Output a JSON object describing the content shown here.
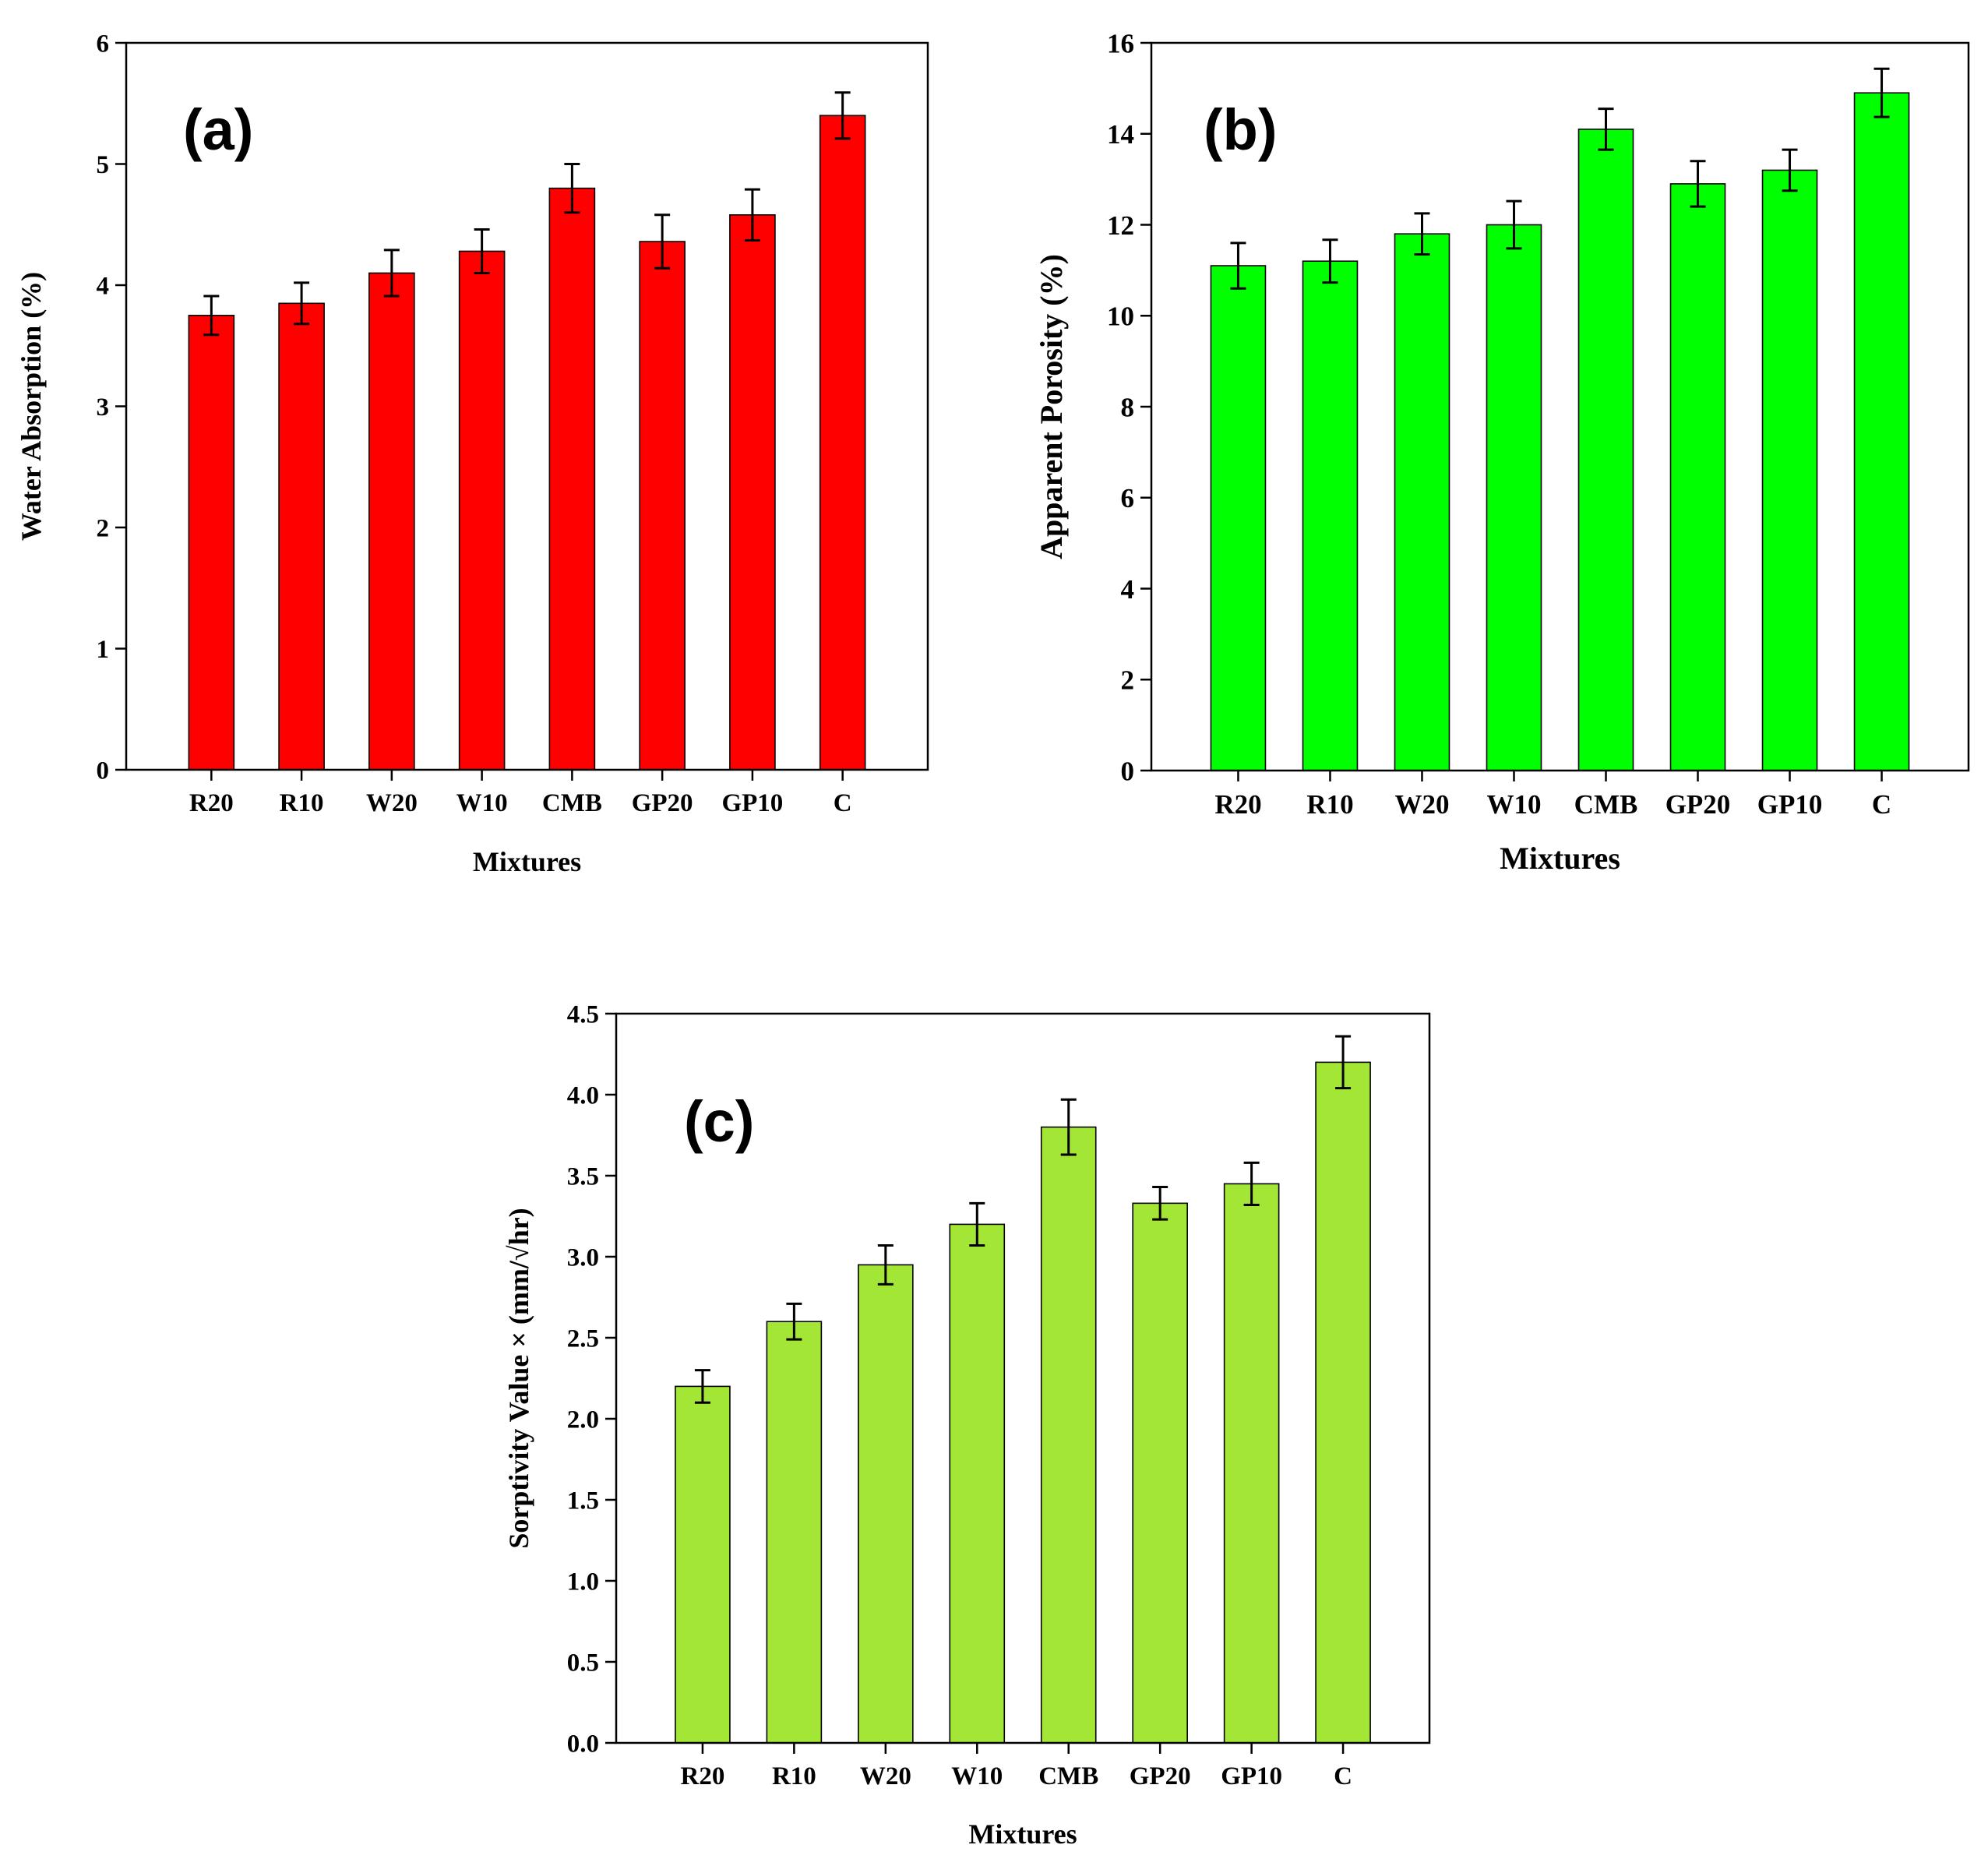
{
  "chart_data": [
    {
      "panel": "(a)",
      "type": "bar",
      "categories": [
        "R20",
        "R10",
        "W20",
        "W10",
        "CMB",
        "GP20",
        "GP10",
        "C"
      ],
      "values": [
        3.75,
        3.85,
        4.1,
        4.28,
        4.8,
        4.36,
        4.58,
        5.4
      ],
      "errors": [
        0.16,
        0.17,
        0.19,
        0.18,
        0.2,
        0.22,
        0.21,
        0.19
      ],
      "xlabel": "Mixtures",
      "ylabel": "Water Absorption (%)",
      "ylim": [
        0,
        6
      ],
      "yticks": [
        "0",
        "1",
        "2",
        "3",
        "4",
        "5",
        "6"
      ],
      "bar_color": "#ff0000",
      "grid": false,
      "legend": "none"
    },
    {
      "panel": "(b)",
      "type": "bar",
      "categories": [
        "R20",
        "R10",
        "W20",
        "W10",
        "CMB",
        "GP20",
        "GP10",
        "C"
      ],
      "values": [
        11.1,
        11.2,
        11.8,
        12.0,
        14.1,
        12.9,
        13.2,
        14.9
      ],
      "errors": [
        0.5,
        0.47,
        0.45,
        0.52,
        0.45,
        0.5,
        0.45,
        0.53
      ],
      "xlabel": "Mixtures",
      "ylabel": "Apparent Porosity (%)",
      "ylim": [
        0,
        16
      ],
      "yticks": [
        "0",
        "2",
        "4",
        "6",
        "8",
        "10",
        "12",
        "14",
        "16"
      ],
      "bar_color": "#00ff00",
      "grid": false,
      "legend": "none"
    },
    {
      "panel": "(c)",
      "type": "bar",
      "categories": [
        "R20",
        "R10",
        "W20",
        "W10",
        "CMB",
        "GP20",
        "GP10",
        "C"
      ],
      "values": [
        2.2,
        2.6,
        2.95,
        3.2,
        3.8,
        3.33,
        3.45,
        4.2
      ],
      "errors": [
        0.1,
        0.11,
        0.12,
        0.13,
        0.17,
        0.1,
        0.13,
        0.16
      ],
      "xlabel": "Mixtures",
      "ylabel": "Sorptivity Value × (mm/√hr)",
      "ylim": [
        0,
        4.5
      ],
      "yticks": [
        "0.0",
        "0.5",
        "1.0",
        "1.5",
        "2.0",
        "2.5",
        "3.0",
        "3.5",
        "4.0",
        "4.5"
      ],
      "bar_color": "#a3e635",
      "grid": false,
      "legend": "none"
    }
  ]
}
